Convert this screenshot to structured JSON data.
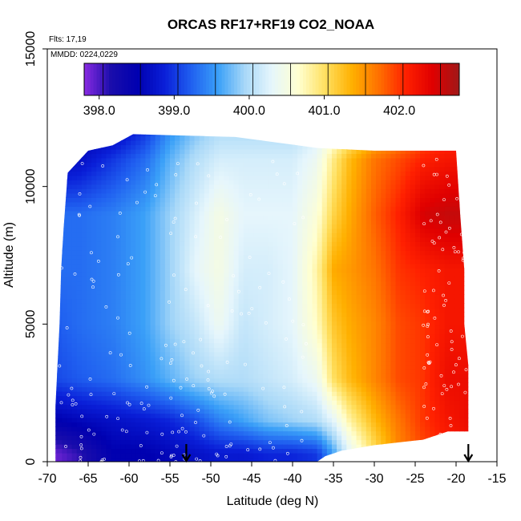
{
  "chart_data": {
    "type": "heatmap",
    "title": "ORCAS RF17+RF19 CO2_NOAA",
    "flights_note": "Flts: 17,19",
    "dates_note": "MMDD: 0224,0229",
    "xlabel": "Latitude (deg N)",
    "ylabel": "Altitude (m)",
    "xlim": [
      -70,
      -15
    ],
    "ylim": [
      0,
      15000
    ],
    "x_ticks": [
      -70,
      -65,
      -60,
      -55,
      -50,
      -45,
      -40,
      -35,
      -30,
      -25,
      -20,
      -15
    ],
    "x_tick_labels": [
      "-70",
      "-65",
      "-60",
      "-55",
      "-50",
      "-45",
      "-40",
      "-35",
      "-30",
      "-25",
      "-20",
      "-15"
    ],
    "y_ticks": [
      0,
      5000,
      10000,
      15000
    ],
    "y_tick_labels": [
      "0",
      "5000",
      "10000",
      "15000"
    ],
    "colorbar": {
      "range": [
        397.8,
        402.8
      ],
      "ticks": [
        398.0,
        399.0,
        400.0,
        401.0,
        402.0
      ],
      "tick_labels": [
        "398.0",
        "399.0",
        "400.0",
        "401.0",
        "402.0"
      ],
      "colors": [
        "#8a2be2",
        "#1a0dab",
        "#0000b0",
        "#0a1fd8",
        "#2060f0",
        "#3aa0f8",
        "#a8d8f8",
        "#e6f6fc",
        "#ffffd0",
        "#ffe060",
        "#ffb000",
        "#ff7000",
        "#ff2000",
        "#e00000",
        "#a01818"
      ]
    },
    "field": {
      "lat_nodes": [
        -69,
        -66,
        -62,
        -58,
        -55,
        -52,
        -49,
        -46,
        -43,
        -40,
        -37,
        -35,
        -33,
        -30,
        -27,
        -24,
        -21,
        -18.5
      ],
      "alt_nodes": [
        300,
        1500,
        3000,
        5000,
        7000,
        9000,
        11000,
        12000
      ],
      "co2_by_alt": [
        [
          397.9,
          398.1,
          398.5,
          398.5,
          398.6,
          398.7,
          398.8,
          398.8,
          398.9,
          398.9,
          399.0,
          399.6,
          400.3,
          401.0,
          401.6,
          401.9,
          402.1,
          402.2
        ],
        [
          398.5,
          398.6,
          398.7,
          398.8,
          398.9,
          399.1,
          399.4,
          399.6,
          399.8,
          399.9,
          400.0,
          400.3,
          400.8,
          401.3,
          401.7,
          402.0,
          402.2,
          402.3
        ],
        [
          399.1,
          399.2,
          399.3,
          399.5,
          399.7,
          399.9,
          400.0,
          400.0,
          400.1,
          400.2,
          400.4,
          401.0,
          401.3,
          401.6,
          401.9,
          402.0,
          402.3,
          402.3
        ],
        [
          399.2,
          399.3,
          399.4,
          399.6,
          399.9,
          400.1,
          400.4,
          400.1,
          400.2,
          400.3,
          400.7,
          401.2,
          401.4,
          401.6,
          401.9,
          402.0,
          402.2,
          402.2
        ],
        [
          399.3,
          399.3,
          399.4,
          399.6,
          399.9,
          400.3,
          400.5,
          400.2,
          400.2,
          400.3,
          400.8,
          401.4,
          401.5,
          401.7,
          402.0,
          402.1,
          402.2,
          402.2
        ],
        [
          399.3,
          399.3,
          399.4,
          399.6,
          399.9,
          400.2,
          400.5,
          400.3,
          400.3,
          400.3,
          400.6,
          401.1,
          401.4,
          401.8,
          402.1,
          402.5,
          402.6,
          402.6
        ],
        [
          398.6,
          398.7,
          399.0,
          399.3,
          399.7,
          400.0,
          400.2,
          400.2,
          400.2,
          400.2,
          400.4,
          400.9,
          401.3,
          401.7,
          401.9,
          402.1,
          402.2,
          402.2
        ],
        [
          398.4,
          398.5,
          398.6,
          399.0,
          399.5,
          399.8,
          400.0,
          400.0,
          400.0,
          400.0,
          400.2,
          400.5,
          400.8,
          401.2,
          401.5,
          401.8,
          402.0,
          402.0
        ]
      ],
      "envelope_top": [
        [
          -67.5,
          10500
        ],
        [
          -65,
          11300
        ],
        [
          -62,
          11500
        ],
        [
          -59.5,
          11900
        ],
        [
          -47,
          11800
        ],
        [
          -37,
          11400
        ],
        [
          -30,
          11300
        ],
        [
          -22,
          11300
        ],
        [
          -20,
          11300
        ]
      ],
      "envelope_bottom": [
        [
          -68.5,
          0
        ],
        [
          -37,
          0
        ],
        [
          -36,
          200
        ],
        [
          -34,
          400
        ],
        [
          -30,
          600
        ],
        [
          -24,
          800
        ],
        [
          -21,
          1100
        ],
        [
          -19,
          1100
        ],
        [
          -18.5,
          1100
        ]
      ],
      "envelope_right": [
        [
          -20,
          11300
        ],
        [
          -19.5,
          9000
        ],
        [
          -19,
          7000
        ],
        [
          -19,
          5000
        ],
        [
          -18.5,
          3500
        ],
        [
          -18.5,
          1100
        ]
      ],
      "envelope_left": [
        [
          -67.5,
          10500
        ],
        [
          -68,
          8500
        ],
        [
          -68.3,
          7000
        ],
        [
          -68.5,
          5000
        ],
        [
          -69,
          2000
        ],
        [
          -69,
          0
        ]
      ]
    },
    "markers": {
      "arrows_lat": [
        -53,
        -18.5
      ]
    }
  }
}
